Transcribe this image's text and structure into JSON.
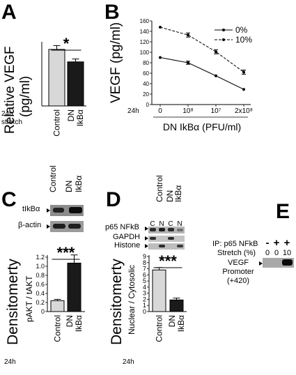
{
  "figure": {
    "panels": {
      "A": {
        "label": "A"
      },
      "B": {
        "label": "B"
      },
      "C": {
        "label": "C"
      },
      "D": {
        "label": "D"
      },
      "E": {
        "label": "E"
      }
    }
  },
  "chart_data": [
    {
      "panel": "A",
      "type": "bar",
      "ylabel": "Relative VEGF",
      "ylabel_unit": "(pg/ml)",
      "condition": [
        "24h",
        "stretch"
      ],
      "categories": [
        "Control",
        "DN IkBα"
      ],
      "category_lines": [
        [
          "Control"
        ],
        [
          "DN",
          "IkBα"
        ]
      ],
      "values": [
        59,
        46
      ],
      "errors": [
        4,
        3
      ],
      "bar_colors": [
        "#d8d8d8",
        "#1a1a1a"
      ],
      "ylim": [
        0,
        80
      ],
      "yticks": [
        "0",
        "20",
        "40",
        "60",
        "80"
      ],
      "significance": "*"
    },
    {
      "panel": "B",
      "type": "line",
      "ylabel": "VEGF (pg/ml)",
      "xlabel": "DN IkBα (PFU/ml)",
      "condition": "24h",
      "categories": [
        "0",
        "10⁸",
        "10⁷",
        "2x10⁸"
      ],
      "ylim": [
        0,
        160
      ],
      "yticks": [
        "0",
        "20",
        "40",
        "60",
        "80",
        "100",
        "120",
        "140",
        "160"
      ],
      "legend_position": "top-right",
      "series": [
        {
          "name": "0%",
          "values": [
            90,
            80,
            55,
            29
          ],
          "errors": [
            0,
            3,
            0,
            0
          ],
          "style": "solid"
        },
        {
          "name": "10%",
          "values": [
            148,
            133,
            101,
            62
          ],
          "errors": [
            0,
            4,
            4,
            4
          ],
          "style": "dashed"
        }
      ]
    },
    {
      "panel": "C",
      "type": "bar",
      "ylabel": "Densitomerty",
      "ylabel_sub": "pAKT / tAKT",
      "condition": "24h",
      "categories": [
        "Control",
        "DN IkBα"
      ],
      "category_lines": [
        [
          "Control"
        ],
        [
          "DN",
          "IkBα"
        ]
      ],
      "values": [
        0.24,
        1.07
      ],
      "errors": [
        0.03,
        0.18
      ],
      "bar_colors": [
        "#d8d8d8",
        "#1a1a1a"
      ],
      "ylim": [
        0,
        1.2
      ],
      "yticks": [
        "0",
        "0.2",
        "0.4",
        "0.6",
        "0.8",
        "1.0",
        "1.2"
      ],
      "significance": "***",
      "blot": {
        "column_labels": [
          [
            "Control"
          ],
          [
            "DN",
            "IkBα"
          ]
        ],
        "rows": [
          "tIkBα",
          "β-actin"
        ]
      }
    },
    {
      "panel": "D",
      "type": "bar",
      "ylabel": "Densitomerty",
      "ylabel_sub": "Nuclear / Cytosolic",
      "condition": "24h",
      "categories": [
        "Control",
        "DN IkBα"
      ],
      "category_lines": [
        [
          "Control"
        ],
        [
          "DN",
          "IkBα"
        ]
      ],
      "values": [
        6.8,
        1.9
      ],
      "errors": [
        0.4,
        0.3
      ],
      "bar_colors": [
        "#d8d8d8",
        "#1a1a1a"
      ],
      "ylim": [
        0,
        9
      ],
      "yticks": [
        "0",
        "1",
        "2",
        "3",
        "4",
        "5",
        "6",
        "7",
        "8",
        "9"
      ],
      "significance": "***",
      "blot": {
        "column_labels": [
          [
            "Control"
          ],
          [
            "DN",
            "IkBα"
          ]
        ],
        "lane_labels": [
          "C",
          "N",
          "C",
          "N"
        ],
        "rows": [
          "p65 NFkB",
          "GAPDH",
          "Histone"
        ]
      }
    }
  ],
  "panel_E": {
    "ip_label": "IP: p65 NFkB",
    "lane_signs": [
      "-",
      "+",
      "+"
    ],
    "stretch_label": "Stretch (%)",
    "stretch_values": [
      "0",
      "0",
      "10"
    ],
    "band_label_lines": [
      "VEGF",
      "Promoter",
      "(+420)"
    ]
  }
}
